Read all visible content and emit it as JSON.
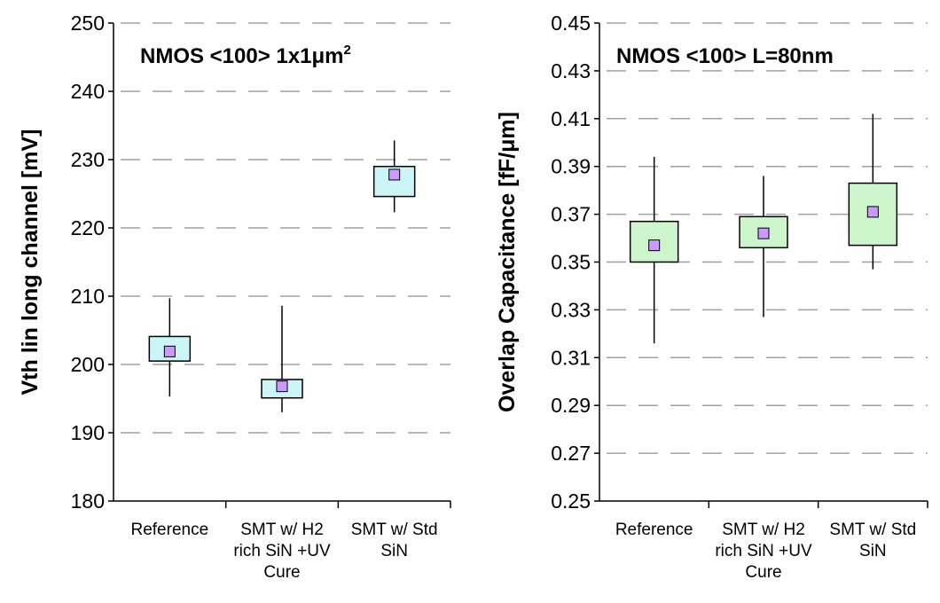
{
  "chart_data": [
    {
      "type": "box",
      "title": "NMOS <100> 1x1μm",
      "title_superscript": "2",
      "ylabel": "Vth lin long channel [mV]",
      "ylim": [
        180,
        250
      ],
      "yticks": [
        "180",
        "190",
        "200",
        "210",
        "220",
        "230",
        "240",
        "250"
      ],
      "grid": "horizontal dashed",
      "box_color": "#ccf5f7",
      "marker_color": "#cc99ff",
      "categories": [
        [
          "Reference"
        ],
        [
          "SMT w/ H2",
          "rich SiN +UV",
          "Cure"
        ],
        [
          "SMT w/ Std",
          "SiN"
        ]
      ],
      "boxes": [
        {
          "min": 195.3,
          "q1": 200.5,
          "median": 201.9,
          "q3": 204.1,
          "max": 209.7
        },
        {
          "min": 193.0,
          "q1": 195.1,
          "median": 196.8,
          "q3": 197.8,
          "max": 208.6
        },
        {
          "min": 222.3,
          "q1": 224.6,
          "median": 227.8,
          "q3": 229.0,
          "max": 232.8
        }
      ]
    },
    {
      "type": "box",
      "title": "NMOS <100> L=80nm",
      "ylabel": "Overlap Capacitance [fF/μm]",
      "ylim": [
        0.25,
        0.45
      ],
      "yticks": [
        "0.25",
        "0.27",
        "0.29",
        "0.31",
        "0.33",
        "0.35",
        "0.37",
        "0.39",
        "0.41",
        "0.43",
        "0.45"
      ],
      "grid": "horizontal dashed",
      "box_color": "#ccf5cc",
      "marker_color": "#cc99ff",
      "categories": [
        [
          "Reference"
        ],
        [
          "SMT w/ H2",
          "rich SiN +UV",
          "Cure"
        ],
        [
          "SMT w/ Std",
          "SiN"
        ]
      ],
      "boxes": [
        {
          "min": 0.316,
          "q1": 0.35,
          "median": 0.357,
          "q3": 0.367,
          "max": 0.394
        },
        {
          "min": 0.327,
          "q1": 0.356,
          "median": 0.362,
          "q3": 0.369,
          "max": 0.386
        },
        {
          "min": 0.347,
          "q1": 0.357,
          "median": 0.371,
          "q3": 0.383,
          "max": 0.412
        }
      ]
    }
  ]
}
